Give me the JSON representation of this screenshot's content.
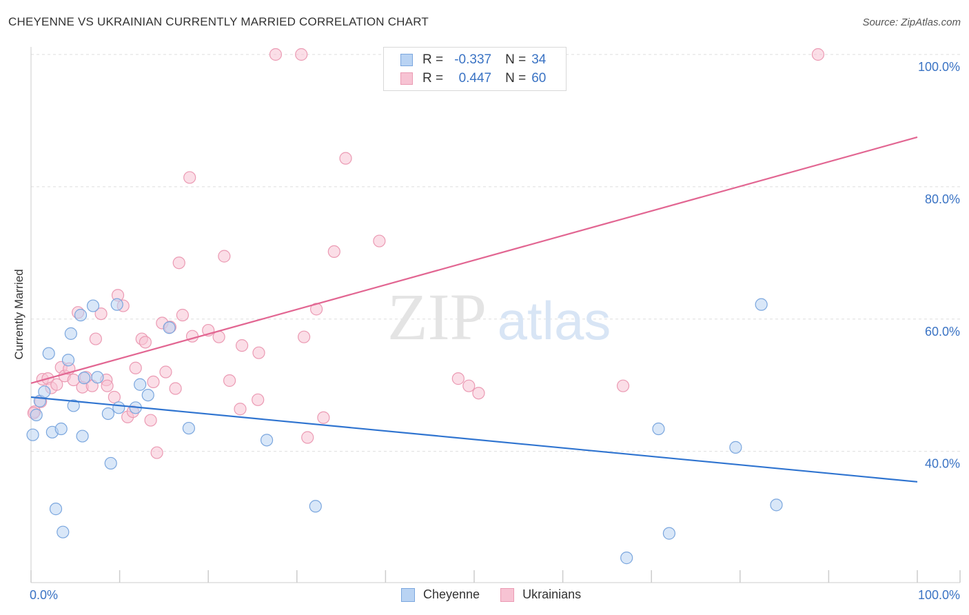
{
  "header": {
    "title": "CHEYENNE VS UKRAINIAN CURRENTLY MARRIED CORRELATION CHART",
    "source": "Source: ZipAtlas.com"
  },
  "watermark": {
    "zip": "ZIP",
    "atlas": "atlas"
  },
  "legend": {
    "r_label": "R =",
    "n_label": "N =",
    "rows": [
      {
        "name": "Cheyenne",
        "r": "-0.337",
        "n": "34"
      },
      {
        "name": "Ukrainians",
        "r": "0.447",
        "n": "60"
      }
    ]
  },
  "colors": {
    "cheyenne_fill": "#b9d3f3",
    "cheyenne_stroke": "#7aa6de",
    "cheyenne_line": "#2f74d0",
    "ukrainian_fill": "#f7c3d3",
    "ukrainian_stroke": "#eb9ab3",
    "ukrainian_line": "#e26692",
    "grid": "#dddddd",
    "tick_label": "#3a73c4"
  },
  "chart_data": {
    "type": "scatter",
    "title": "CHEYENNE VS UKRAINIAN CURRENTLY MARRIED CORRELATION CHART",
    "xlabel": "",
    "ylabel": "Currently Married",
    "xlim": [
      0,
      100
    ],
    "ylim": [
      20,
      102
    ],
    "x_tick_labels": [
      "0.0%",
      "100.0%"
    ],
    "y_ticks": [
      40,
      60,
      80,
      100
    ],
    "y_tick_labels": [
      "40.0%",
      "60.0%",
      "80.0%",
      "100.0%"
    ],
    "grid": true,
    "legend_position": "top-center",
    "series": [
      {
        "name": "Cheyenne",
        "r": -0.337,
        "n": 34,
        "trend": {
          "x": [
            0,
            100
          ],
          "y": [
            48.2,
            35.4
          ]
        },
        "points": [
          {
            "x": 0.2,
            "y": 42.5
          },
          {
            "x": 0.6,
            "y": 45.5
          },
          {
            "x": 1.0,
            "y": 47.6
          },
          {
            "x": 1.5,
            "y": 49.0
          },
          {
            "x": 2.0,
            "y": 54.8
          },
          {
            "x": 2.4,
            "y": 42.9
          },
          {
            "x": 2.8,
            "y": 31.3
          },
          {
            "x": 3.4,
            "y": 43.4
          },
          {
            "x": 3.6,
            "y": 27.8
          },
          {
            "x": 4.2,
            "y": 53.8
          },
          {
            "x": 4.5,
            "y": 57.8
          },
          {
            "x": 4.8,
            "y": 46.9
          },
          {
            "x": 5.6,
            "y": 60.6
          },
          {
            "x": 5.8,
            "y": 42.3
          },
          {
            "x": 6.0,
            "y": 51.1
          },
          {
            "x": 7.0,
            "y": 62.0
          },
          {
            "x": 7.5,
            "y": 51.2
          },
          {
            "x": 8.7,
            "y": 45.7
          },
          {
            "x": 9.0,
            "y": 38.2
          },
          {
            "x": 9.7,
            "y": 62.2
          },
          {
            "x": 9.9,
            "y": 46.6
          },
          {
            "x": 11.8,
            "y": 46.6
          },
          {
            "x": 12.3,
            "y": 50.1
          },
          {
            "x": 13.2,
            "y": 48.5
          },
          {
            "x": 15.6,
            "y": 58.7
          },
          {
            "x": 17.8,
            "y": 43.5
          },
          {
            "x": 26.6,
            "y": 41.7
          },
          {
            "x": 32.1,
            "y": 31.7
          },
          {
            "x": 67.2,
            "y": 23.9
          },
          {
            "x": 70.8,
            "y": 43.4
          },
          {
            "x": 72.0,
            "y": 27.6
          },
          {
            "x": 79.5,
            "y": 40.6
          },
          {
            "x": 82.4,
            "y": 62.2
          },
          {
            "x": 84.1,
            "y": 31.9
          }
        ]
      },
      {
        "name": "Ukrainians",
        "r": 0.447,
        "n": 60,
        "trend": {
          "x": [
            0,
            100
          ],
          "y": [
            50.3,
            87.5
          ]
        },
        "points": [
          {
            "x": 0.4,
            "y": 46.0
          },
          {
            "x": 1.1,
            "y": 47.5
          },
          {
            "x": 1.3,
            "y": 50.9
          },
          {
            "x": 1.9,
            "y": 51.0
          },
          {
            "x": 2.3,
            "y": 49.6
          },
          {
            "x": 2.9,
            "y": 50.1
          },
          {
            "x": 3.4,
            "y": 52.7
          },
          {
            "x": 3.8,
            "y": 51.4
          },
          {
            "x": 4.3,
            "y": 52.5
          },
          {
            "x": 4.8,
            "y": 50.8
          },
          {
            "x": 5.3,
            "y": 61.0
          },
          {
            "x": 5.8,
            "y": 49.7
          },
          {
            "x": 6.2,
            "y": 51.2
          },
          {
            "x": 6.9,
            "y": 49.9
          },
          {
            "x": 7.3,
            "y": 57.0
          },
          {
            "x": 7.9,
            "y": 60.8
          },
          {
            "x": 8.5,
            "y": 50.8
          },
          {
            "x": 8.6,
            "y": 49.9
          },
          {
            "x": 9.4,
            "y": 48.2
          },
          {
            "x": 9.8,
            "y": 63.6
          },
          {
            "x": 10.4,
            "y": 62.0
          },
          {
            "x": 10.9,
            "y": 45.2
          },
          {
            "x": 11.5,
            "y": 46.0
          },
          {
            "x": 11.8,
            "y": 52.6
          },
          {
            "x": 12.5,
            "y": 57.0
          },
          {
            "x": 12.9,
            "y": 56.5
          },
          {
            "x": 13.5,
            "y": 44.7
          },
          {
            "x": 13.8,
            "y": 50.5
          },
          {
            "x": 14.2,
            "y": 39.8
          },
          {
            "x": 14.8,
            "y": 59.4
          },
          {
            "x": 15.2,
            "y": 52.0
          },
          {
            "x": 15.7,
            "y": 58.8
          },
          {
            "x": 16.3,
            "y": 49.5
          },
          {
            "x": 16.7,
            "y": 68.5
          },
          {
            "x": 17.1,
            "y": 60.6
          },
          {
            "x": 17.9,
            "y": 81.4
          },
          {
            "x": 18.2,
            "y": 57.4
          },
          {
            "x": 20.0,
            "y": 58.3
          },
          {
            "x": 21.2,
            "y": 57.3
          },
          {
            "x": 21.8,
            "y": 69.5
          },
          {
            "x": 22.4,
            "y": 50.7
          },
          {
            "x": 23.6,
            "y": 46.4
          },
          {
            "x": 23.8,
            "y": 56.0
          },
          {
            "x": 25.6,
            "y": 47.8
          },
          {
            "x": 25.7,
            "y": 54.9
          },
          {
            "x": 27.6,
            "y": 100.0
          },
          {
            "x": 30.5,
            "y": 100.0
          },
          {
            "x": 30.8,
            "y": 57.3
          },
          {
            "x": 31.2,
            "y": 42.1
          },
          {
            "x": 32.2,
            "y": 61.5
          },
          {
            "x": 33.0,
            "y": 45.1
          },
          {
            "x": 34.2,
            "y": 70.2
          },
          {
            "x": 35.5,
            "y": 84.3
          },
          {
            "x": 39.3,
            "y": 71.8
          },
          {
            "x": 48.2,
            "y": 51.0
          },
          {
            "x": 49.4,
            "y": 49.9
          },
          {
            "x": 50.5,
            "y": 48.8
          },
          {
            "x": 66.8,
            "y": 49.9
          },
          {
            "x": 88.8,
            "y": 100.0
          },
          {
            "x": 0.3,
            "y": 45.8
          }
        ]
      }
    ]
  }
}
